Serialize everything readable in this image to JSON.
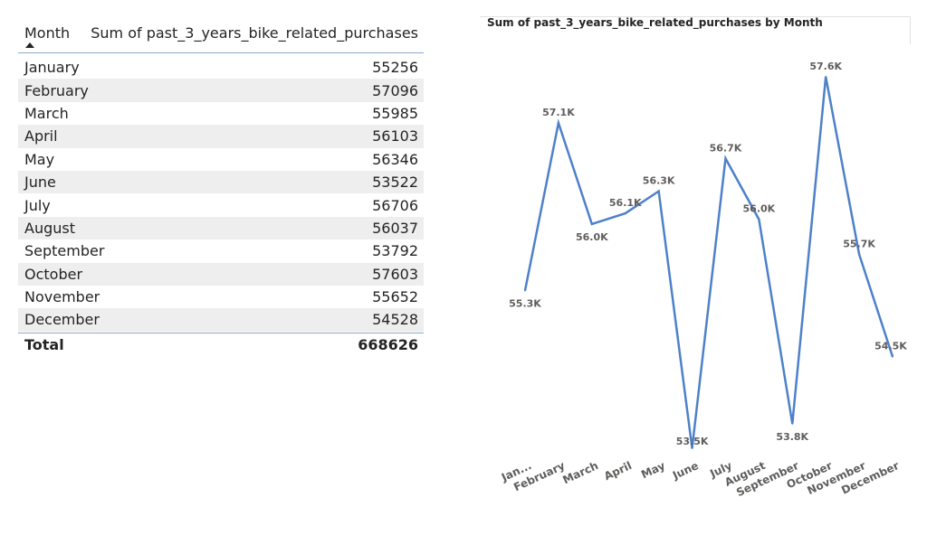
{
  "table": {
    "headers": [
      "Month",
      "Sum of past_3_years_bike_related_purchases"
    ],
    "rows": [
      [
        "January",
        "55256"
      ],
      [
        "February",
        "57096"
      ],
      [
        "March",
        "55985"
      ],
      [
        "April",
        "56103"
      ],
      [
        "May",
        "56346"
      ],
      [
        "June",
        "53522"
      ],
      [
        "July",
        "56706"
      ],
      [
        "August",
        "56037"
      ],
      [
        "September",
        "53792"
      ],
      [
        "October",
        "57603"
      ],
      [
        "November",
        "55652"
      ],
      [
        "December",
        "54528"
      ]
    ],
    "total_label": "Total",
    "total_value": "668626"
  },
  "chart_data": {
    "type": "line",
    "title": "Sum of past_3_years_bike_related_purchases by Month",
    "categories": [
      "Jan...",
      "February",
      "March",
      "April",
      "May",
      "June",
      "July",
      "August",
      "September",
      "October",
      "November",
      "December"
    ],
    "values": [
      55256,
      57096,
      55985,
      56103,
      56346,
      53522,
      56706,
      56037,
      53792,
      57603,
      55652,
      54528
    ],
    "data_labels": [
      "55.3K",
      "57.1K",
      "56.0K",
      "56.1K",
      "56.3K",
      "53.5K",
      "56.7K",
      "56.0K",
      "53.8K",
      "57.6K",
      "55.7K",
      "54.5K"
    ],
    "xlabel": "",
    "ylabel": "",
    "y_axis_visible": false,
    "grid": false,
    "line_color": "#4e81c9"
  }
}
